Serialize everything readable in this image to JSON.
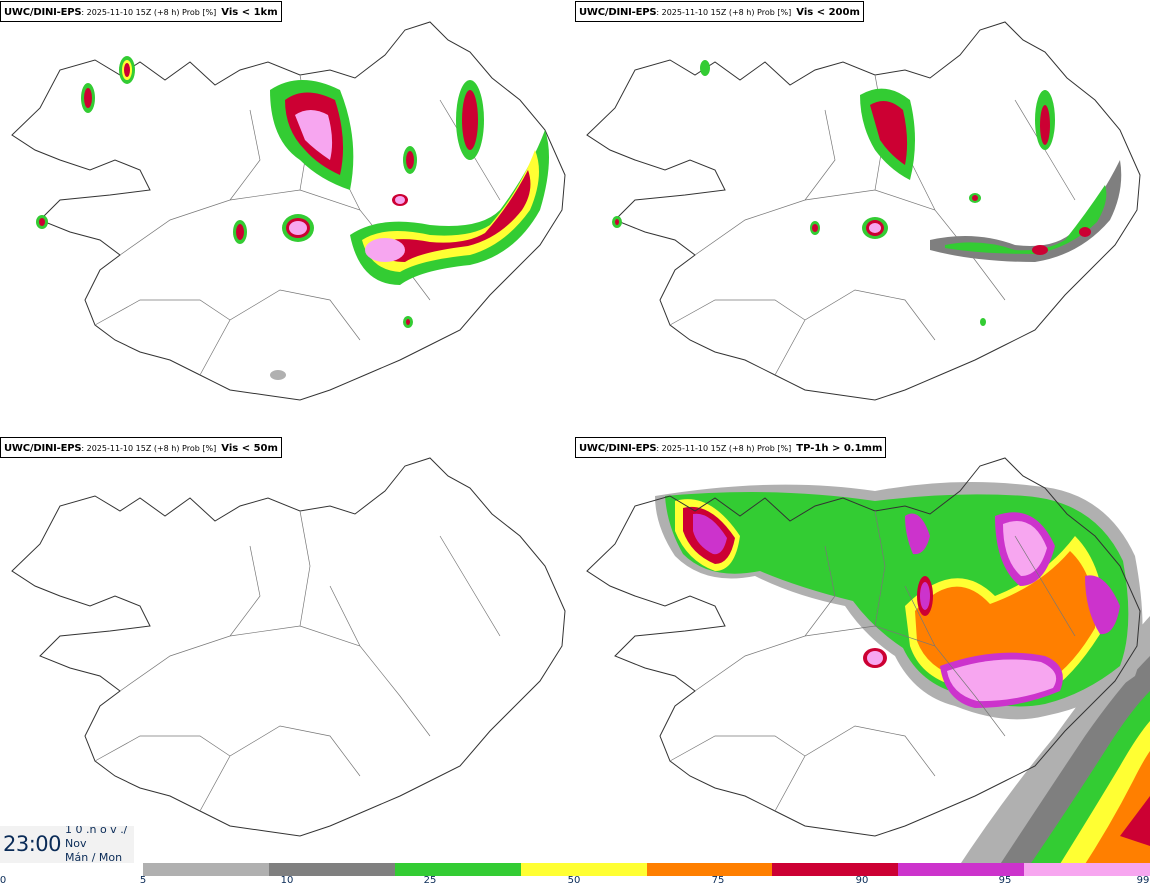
{
  "panels": [
    {
      "source": "UWC/DINI-EPS",
      "meta": ": 2025-11-10 15Z (+8 h) Prob [%]",
      "threshold": "Vis < 1km"
    },
    {
      "source": "UWC/DINI-EPS",
      "meta": ": 2025-11-10 15Z (+8 h) Prob [%]",
      "threshold": "Vis < 200m"
    },
    {
      "source": "UWC/DINI-EPS",
      "meta": ": 2025-11-10 15Z (+8 h) Prob [%]",
      "threshold": "Vis < 50m"
    },
    {
      "source": "UWC/DINI-EPS",
      "meta": ": 2025-11-10 15Z (+8 h) Prob [%]",
      "threshold": "TP-1h > 0.1mm"
    }
  ],
  "time": {
    "clock": "23:00",
    "line1": "1 0 .n o v ./",
    "line2": "Nov",
    "line3": "Mán / Mon"
  },
  "legend": {
    "ticks": [
      "0",
      "5",
      "10",
      "25",
      "50",
      "75",
      "90",
      "95",
      "99"
    ],
    "colors": [
      "#b0b0b0",
      "#7f7f7f",
      "#33cc33",
      "#ffff33",
      "#ff7f00",
      "#cc0033",
      "#cc33cc",
      "#f7a6f0"
    ]
  }
}
